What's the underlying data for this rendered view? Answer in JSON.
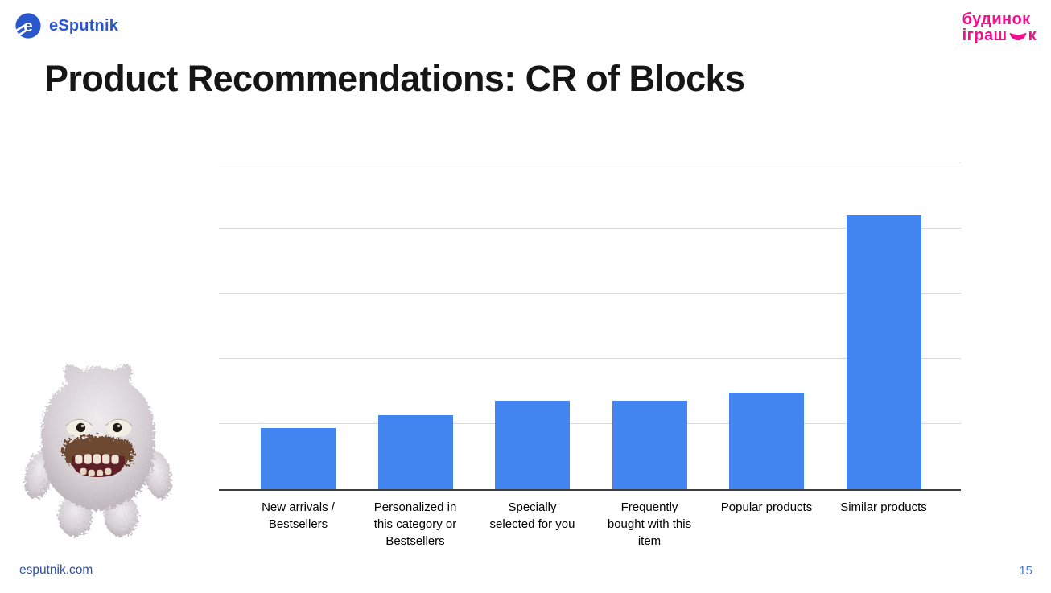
{
  "header": {
    "esputnik_logo_text": "eSputnik",
    "toy_logo_line1": "будинок",
    "toy_logo_line2_pre": "іграш",
    "toy_logo_line2_post": "к",
    "brand_blue": "#2b57cc",
    "brand_pink": "#f0108f"
  },
  "title": "Product Recommendations: CR of Blocks",
  "chart_data": {
    "type": "bar",
    "title": "",
    "xlabel": "",
    "ylabel": "",
    "categories": [
      "New arrivals / Bestsellers",
      "Personalized in this category or Bestsellers",
      "Specially selected for you",
      "Frequently bought with this item",
      "Popular products",
      "Similar products"
    ],
    "categories_wrapped": [
      [
        "New arrivals /",
        "Bestsellers"
      ],
      [
        "Personalized in",
        "this category or",
        "Bestsellers"
      ],
      [
        "Specially",
        "selected for you"
      ],
      [
        "Frequently",
        "bought with this",
        "item"
      ],
      [
        "Popular products"
      ],
      [
        "Similar products"
      ]
    ],
    "values": [
      0.94,
      1.14,
      1.36,
      1.36,
      1.48,
      4.21
    ],
    "values_unit": "gridline units (y-axis tick labels not shown on slide)",
    "ylim": [
      0,
      5
    ],
    "gridline_interval": 1,
    "y_tick_labels_visible": false,
    "grid": "horizontal",
    "legend": "none",
    "bar_color": "#4285f0",
    "gridline_color": "#d9d9d9",
    "axis_color": "#3f3f3f"
  },
  "illustration": {
    "description": "gray fuzzy plush monster toy with brown mustache and teeth"
  },
  "footer": {
    "site": "esputnik.com",
    "page_number": "15"
  }
}
